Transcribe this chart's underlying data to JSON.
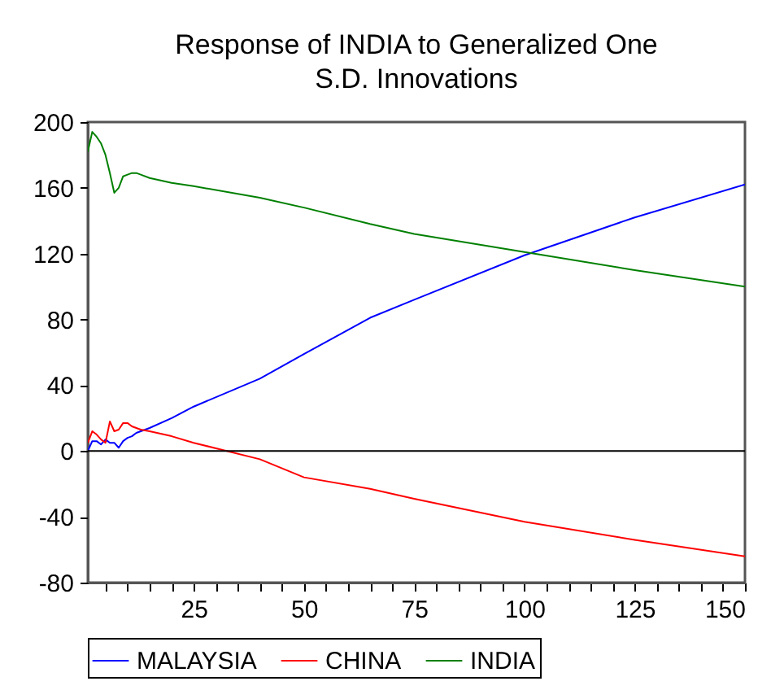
{
  "chart_data": {
    "type": "line",
    "title": "Response of INDIA to Generalized One S.D. Innovations",
    "xlim": [
      1,
      150
    ],
    "xticks": [
      {
        "value": 5,
        "label": null
      },
      {
        "value": 10,
        "label": null
      },
      {
        "value": 15,
        "label": null
      },
      {
        "value": 20,
        "label": null
      },
      25,
      {
        "value": 30,
        "label": null
      },
      {
        "value": 35,
        "label": null
      },
      {
        "value": 40,
        "label": null
      },
      {
        "value": 45,
        "label": null
      },
      50,
      {
        "value": 55,
        "label": null
      },
      {
        "value": 60,
        "label": null
      },
      {
        "value": 65,
        "label": null
      },
      {
        "value": 70,
        "label": null
      },
      75,
      {
        "value": 80,
        "label": null
      },
      {
        "value": 85,
        "label": null
      },
      {
        "value": 90,
        "label": null
      },
      {
        "value": 95,
        "label": null
      },
      100,
      {
        "value": 105,
        "label": null
      },
      {
        "value": 110,
        "label": null
      },
      {
        "value": 115,
        "label": null
      },
      {
        "value": 120,
        "label": null
      },
      125,
      {
        "value": 130,
        "label": null
      },
      {
        "value": 135,
        "label": null
      },
      {
        "value": 140,
        "label": null
      },
      {
        "value": 145,
        "label": null
      },
      150
    ],
    "ylim": [
      -80,
      200
    ],
    "yticks": [
      -80,
      -40,
      0,
      40,
      80,
      120,
      160,
      200
    ],
    "x": [
      1,
      2,
      3,
      4,
      5,
      6,
      7,
      8,
      9,
      10,
      11,
      12,
      13,
      15,
      20,
      25,
      40,
      50,
      65,
      75,
      100,
      125,
      150
    ],
    "series": [
      {
        "name": "MALAYSIA",
        "color": "#0000ff",
        "values": [
          0,
          6,
          6,
          4,
          7,
          5,
          5,
          2,
          6,
          8,
          9,
          11,
          12,
          14,
          20,
          27,
          44,
          59,
          81,
          92,
          119,
          142,
          162
        ]
      },
      {
        "name": "CHINA",
        "color": "#ff0000",
        "values": [
          5,
          12,
          10,
          7,
          5,
          18,
          12,
          13,
          17,
          17,
          15,
          14,
          13,
          12,
          9,
          5,
          -5,
          -16,
          -23,
          -29,
          -43,
          -54,
          -64
        ]
      },
      {
        "name": "INDIA",
        "color": "#008000",
        "values": [
          182,
          194,
          191,
          187,
          180,
          169,
          157,
          160,
          167,
          168,
          169,
          169,
          168,
          166,
          163,
          161,
          154,
          148,
          138,
          132,
          121,
          110,
          100
        ]
      }
    ],
    "ref_lines": [
      {
        "axis": "y",
        "value": 0,
        "color": "#000000"
      }
    ],
    "legend": "bottom",
    "line_style": "solid",
    "marker": "none"
  }
}
